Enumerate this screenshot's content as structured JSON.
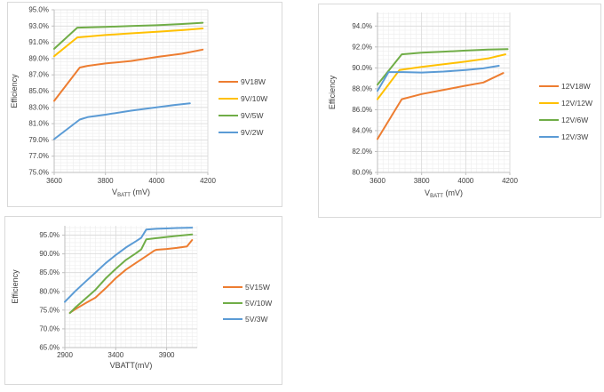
{
  "page": {
    "background": "#ffffff"
  },
  "colors": {
    "series_orange": "#ED7D31",
    "series_yellow": "#FFC000",
    "series_green": "#70AD47",
    "series_blue": "#5B9BD5",
    "grid_major": "#D9D9D9",
    "grid_minor": "#EDEDED",
    "axis_line": "#BFBFBF",
    "axis_text": "#404040",
    "box_border": "#D9D9D9"
  },
  "chart_data": [
    {
      "type": "line",
      "id": "efficiency-9v",
      "title": "",
      "ylabel": "Efficiency",
      "xlabel": {
        "pre": "V",
        "sub": "BATT",
        "post": " (mV)"
      },
      "grid": true,
      "legend_position": "right",
      "x_axis": {
        "min": 3600,
        "max": 4200,
        "minor_step": 25
      },
      "y_axis": {
        "min": 75,
        "max": 95,
        "minor_step": 0.4
      },
      "x_ticks": [
        3600,
        3800,
        4000,
        4200
      ],
      "x_tick_labels": [
        "3600",
        "3800",
        "4000",
        "4200"
      ],
      "y_ticks": [
        95,
        93,
        91,
        89,
        87,
        85,
        83,
        81,
        79,
        77,
        75
      ],
      "y_tick_labels": [
        "95.0%",
        "93.0%",
        "91.0%",
        "89.0%",
        "87.0%",
        "85.0%",
        "83.0%",
        "81.0%",
        "79.0%",
        "77.0%",
        "75.0%"
      ],
      "series": [
        {
          "name": "9V18W",
          "color": "#ED7D31",
          "points": [
            [
              3600,
              83.8
            ],
            [
              3700,
              87.9
            ],
            [
              3730,
              88.1
            ],
            [
              3800,
              88.4
            ],
            [
              3900,
              88.7
            ],
            [
              4000,
              89.2
            ],
            [
              4100,
              89.6
            ],
            [
              4180,
              90.1
            ]
          ]
        },
        {
          "name": "9V/10W",
          "color": "#FFC000",
          "points": [
            [
              3600,
              89.3
            ],
            [
              3690,
              91.6
            ],
            [
              3800,
              91.9
            ],
            [
              3900,
              92.1
            ],
            [
              4000,
              92.3
            ],
            [
              4100,
              92.5
            ],
            [
              4180,
              92.7
            ]
          ]
        },
        {
          "name": "9V/5W",
          "color": "#70AD47",
          "points": [
            [
              3600,
              90.2
            ],
            [
              3690,
              92.8
            ],
            [
              3800,
              92.9
            ],
            [
              3900,
              93.0
            ],
            [
              4000,
              93.1
            ],
            [
              4100,
              93.25
            ],
            [
              4180,
              93.4
            ]
          ]
        },
        {
          "name": "9V/2W",
          "color": "#5B9BD5",
          "points": [
            [
              3600,
              79.1
            ],
            [
              3700,
              81.5
            ],
            [
              3730,
              81.8
            ],
            [
              3800,
              82.1
            ],
            [
              3900,
              82.6
            ],
            [
              4000,
              83.0
            ],
            [
              4070,
              83.3
            ],
            [
              4130,
              83.5
            ]
          ]
        }
      ]
    },
    {
      "type": "line",
      "id": "efficiency-12v",
      "title": "",
      "ylabel": "Efficiency",
      "xlabel": {
        "pre": "V",
        "sub": "BATT",
        "post": " (mV)"
      },
      "grid": true,
      "legend_position": "right",
      "x_axis": {
        "min": 3600,
        "max": 4200,
        "minor_step": 25
      },
      "y_axis": {
        "min": 80,
        "max": 95.3,
        "minor_step": 0.4
      },
      "x_ticks": [
        3600,
        3800,
        4000,
        4200
      ],
      "x_tick_labels": [
        "3600",
        "3800",
        "4000",
        "4200"
      ],
      "y_ticks": [
        94,
        92,
        90,
        88,
        86,
        84,
        82,
        80
      ],
      "y_tick_labels": [
        "94.0%",
        "92.0%",
        "90.0%",
        "88.0%",
        "86.0%",
        "84.0%",
        "82.0%",
        "80.0%"
      ],
      "series": [
        {
          "name": "12V18W",
          "color": "#ED7D31",
          "points": [
            [
              3600,
              83.2
            ],
            [
              3710,
              87.0
            ],
            [
              3800,
              87.5
            ],
            [
              3900,
              87.9
            ],
            [
              4000,
              88.3
            ],
            [
              4080,
              88.6
            ],
            [
              4170,
              89.5
            ]
          ]
        },
        {
          "name": "12V/12W",
          "color": "#FFC000",
          "points": [
            [
              3600,
              87.0
            ],
            [
              3700,
              89.8
            ],
            [
              3800,
              90.1
            ],
            [
              3900,
              90.35
            ],
            [
              4000,
              90.6
            ],
            [
              4100,
              90.9
            ],
            [
              4180,
              91.3
            ]
          ]
        },
        {
          "name": "12V/6W",
          "color": "#70AD47",
          "points": [
            [
              3600,
              88.4
            ],
            [
              3710,
              91.3
            ],
            [
              3800,
              91.45
            ],
            [
              3900,
              91.55
            ],
            [
              4000,
              91.65
            ],
            [
              4100,
              91.75
            ],
            [
              4190,
              91.8
            ]
          ]
        },
        {
          "name": "12V/3W",
          "color": "#5B9BD5",
          "points": [
            [
              3600,
              87.8
            ],
            [
              3650,
              89.6
            ],
            [
              3720,
              89.6
            ],
            [
              3800,
              89.55
            ],
            [
              3900,
              89.65
            ],
            [
              4000,
              89.8
            ],
            [
              4080,
              89.95
            ],
            [
              4150,
              90.2
            ]
          ]
        }
      ]
    },
    {
      "type": "line",
      "id": "efficiency-5v",
      "title": "",
      "ylabel": "Efficiency",
      "xlabel": {
        "pre": "VBATT(mV)",
        "sub": "",
        "post": ""
      },
      "grid": true,
      "legend_position": "right",
      "x_axis": {
        "min": 2900,
        "max": 4200,
        "minor_step": 50
      },
      "y_axis": {
        "min": 65,
        "max": 97.5,
        "minor_step": 1
      },
      "x_ticks": [
        2900,
        3400,
        3900
      ],
      "x_tick_labels": [
        "2900",
        "3400",
        "3900"
      ],
      "y_ticks": [
        95,
        90,
        85,
        80,
        75,
        70,
        65
      ],
      "y_tick_labels": [
        "95.0%",
        "90.0%",
        "85.0%",
        "80.0%",
        "75.0%",
        "70.0%",
        "65.0%"
      ],
      "series": [
        {
          "name": "5V15W",
          "color": "#ED7D31",
          "points": [
            [
              2950,
              74.3
            ],
            [
              3000,
              75.2
            ],
            [
              3100,
              76.8
            ],
            [
              3200,
              78.3
            ],
            [
              3300,
              80.8
            ],
            [
              3400,
              83.5
            ],
            [
              3500,
              85.8
            ],
            [
              3600,
              87.6
            ],
            [
              3700,
              89.4
            ],
            [
              3780,
              90.9
            ],
            [
              3800,
              91.1
            ],
            [
              3900,
              91.3
            ],
            [
              4000,
              91.6
            ],
            [
              4100,
              92.0
            ],
            [
              4150,
              93.7
            ]
          ]
        },
        {
          "name": "5V/10W",
          "color": "#70AD47",
          "points": [
            [
              2950,
              74.2
            ],
            [
              3000,
              75.6
            ],
            [
              3100,
              78.0
            ],
            [
              3200,
              80.4
            ],
            [
              3300,
              83.4
            ],
            [
              3400,
              86.0
            ],
            [
              3500,
              88.4
            ],
            [
              3600,
              90.2
            ],
            [
              3650,
              91.2
            ],
            [
              3700,
              93.9
            ],
            [
              3800,
              94.2
            ],
            [
              3900,
              94.5
            ],
            [
              4000,
              94.8
            ],
            [
              4150,
              95.2
            ]
          ]
        },
        {
          "name": "5V/3W",
          "color": "#5B9BD5",
          "points": [
            [
              2900,
              77.2
            ],
            [
              3000,
              80.0
            ],
            [
              3100,
              82.5
            ],
            [
              3200,
              85.0
            ],
            [
              3300,
              87.5
            ],
            [
              3400,
              89.7
            ],
            [
              3500,
              91.7
            ],
            [
              3600,
              93.4
            ],
            [
              3650,
              94.3
            ],
            [
              3700,
              96.5
            ],
            [
              3800,
              96.7
            ],
            [
              3900,
              96.8
            ],
            [
              4000,
              96.9
            ],
            [
              4150,
              97.0
            ]
          ]
        }
      ]
    }
  ]
}
